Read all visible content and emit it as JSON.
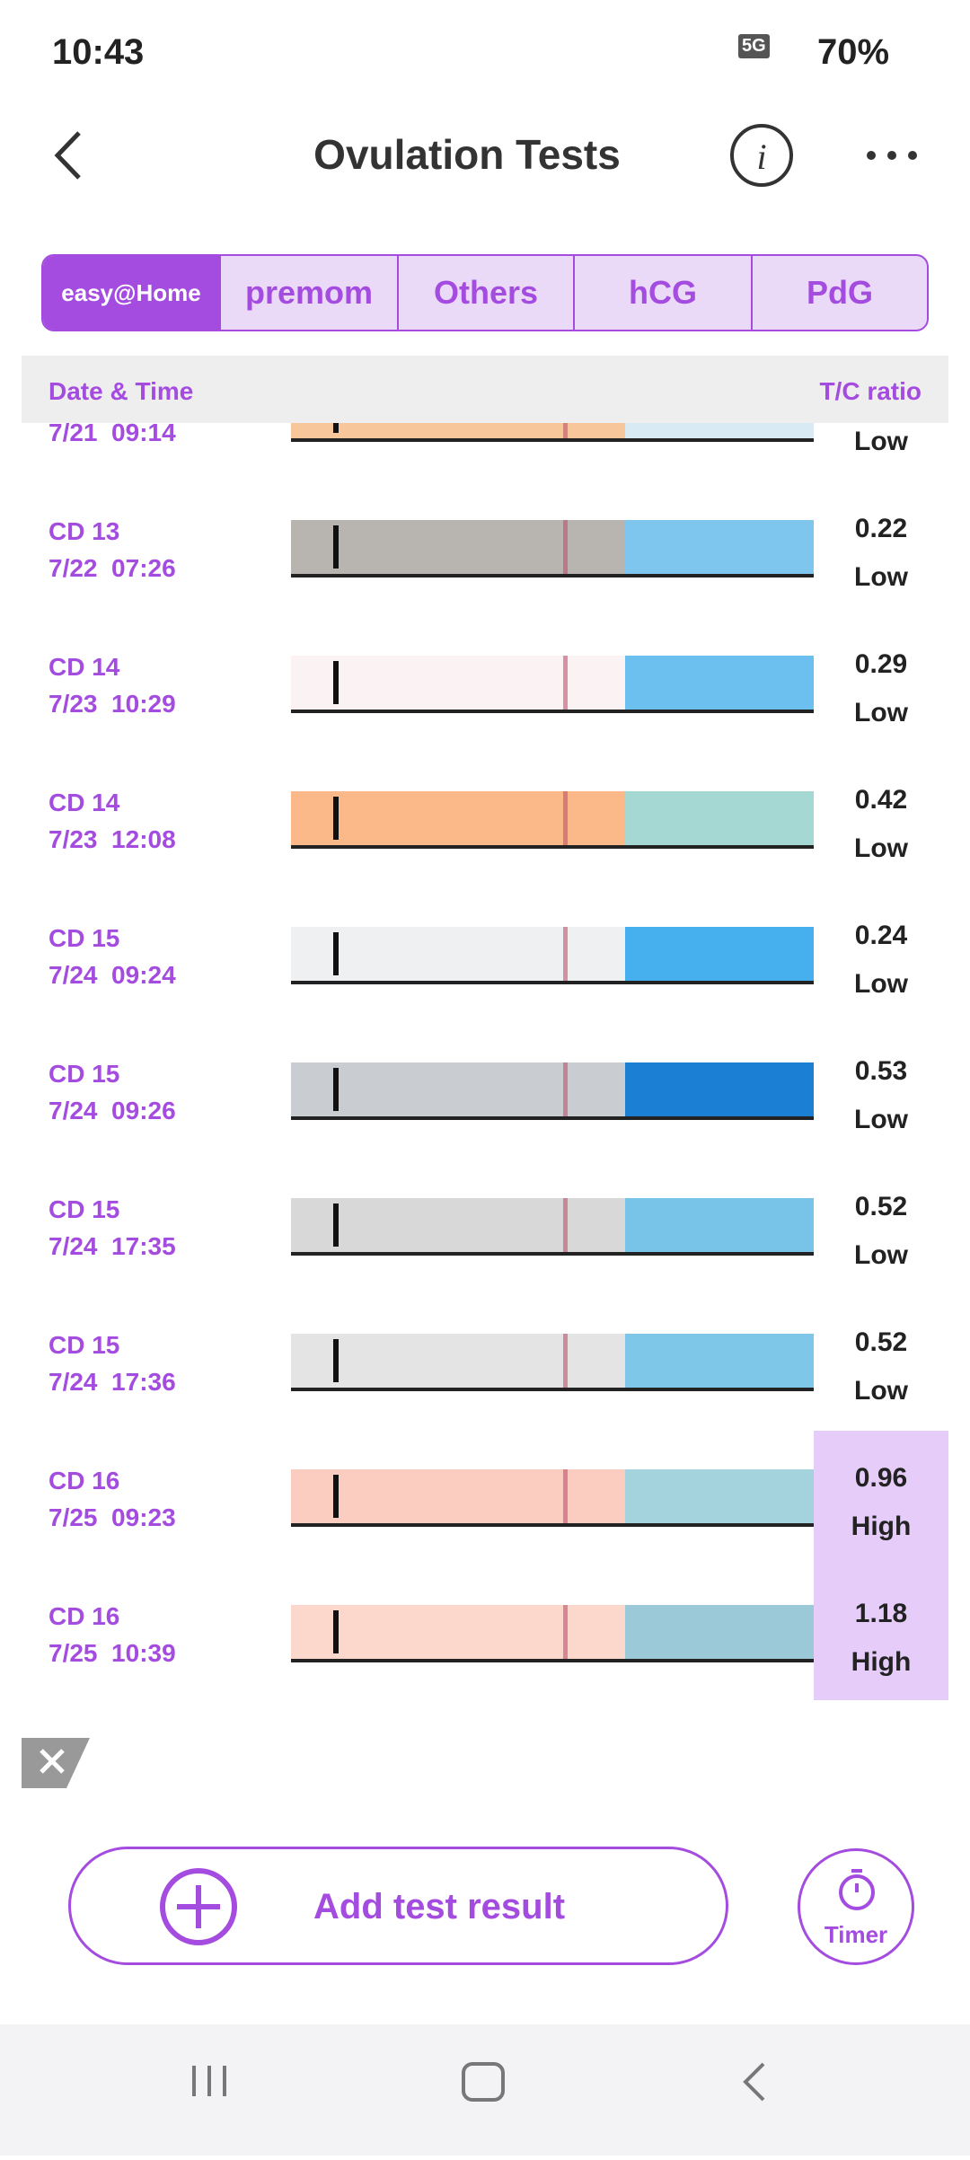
{
  "status_bar": {
    "time": "10:43",
    "network": "5G",
    "battery": "70%"
  },
  "header": {
    "title": "Ovulation Tests"
  },
  "tabs": [
    "easy@Home",
    "premom",
    "Others",
    "hCG",
    "PdG"
  ],
  "table": {
    "columns": [
      "Date & Time",
      "T/C ratio"
    ],
    "rows": [
      {
        "date": "7/21  09:14",
        "level": "Low",
        "highlight": false
      },
      {
        "cd": "CD 13",
        "date": "7/22  07:26",
        "ratio": "0.22",
        "level": "Low",
        "highlight": false
      },
      {
        "cd": "CD 14",
        "date": "7/23  10:29",
        "ratio": "0.29",
        "level": "Low",
        "highlight": false
      },
      {
        "cd": "CD 14",
        "date": "7/23  12:08",
        "ratio": "0.42",
        "level": "Low",
        "highlight": false
      },
      {
        "cd": "CD 15",
        "date": "7/24  09:24",
        "ratio": "0.24",
        "level": "Low",
        "highlight": false
      },
      {
        "cd": "CD 15",
        "date": "7/24  09:26",
        "ratio": "0.53",
        "level": "Low",
        "highlight": false
      },
      {
        "cd": "CD 15",
        "date": "7/24  17:35",
        "ratio": "0.52",
        "level": "Low",
        "highlight": false
      },
      {
        "cd": "CD 15",
        "date": "7/24  17:36",
        "ratio": "0.52",
        "level": "Low",
        "highlight": false
      },
      {
        "cd": "CD 16",
        "date": "7/25  09:23",
        "ratio": "0.96",
        "level": "High",
        "highlight": true
      },
      {
        "cd": "CD 16",
        "date": "7/25  10:39",
        "ratio": "1.18",
        "level": "High",
        "highlight": true
      }
    ]
  },
  "actions": {
    "add": "Add test result",
    "timer": "Timer"
  }
}
